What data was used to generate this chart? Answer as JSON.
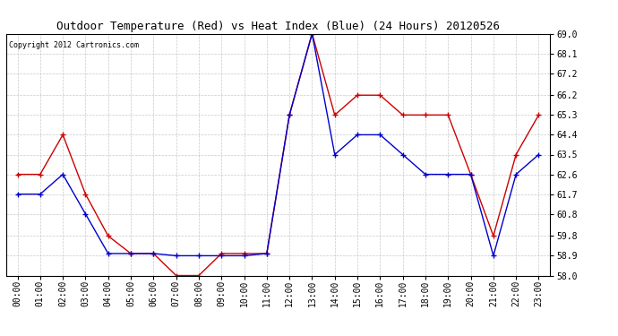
{
  "title": "Outdoor Temperature (Red) vs Heat Index (Blue) (24 Hours) 20120526",
  "copyright": "Copyright 2012 Cartronics.com",
  "x_labels": [
    "00:00",
    "01:00",
    "02:00",
    "03:00",
    "04:00",
    "05:00",
    "06:00",
    "07:00",
    "08:00",
    "09:00",
    "10:00",
    "11:00",
    "12:00",
    "13:00",
    "14:00",
    "15:00",
    "16:00",
    "17:00",
    "18:00",
    "19:00",
    "20:00",
    "21:00",
    "22:00",
    "23:00"
  ],
  "red_temp": [
    62.6,
    62.6,
    64.4,
    61.7,
    59.8,
    59.0,
    59.0,
    58.0,
    58.0,
    59.0,
    59.0,
    59.0,
    65.3,
    69.0,
    65.3,
    66.2,
    66.2,
    65.3,
    65.3,
    65.3,
    62.6,
    59.8,
    63.5,
    65.3
  ],
  "blue_heat": [
    61.7,
    61.7,
    62.6,
    60.8,
    59.0,
    59.0,
    59.0,
    58.9,
    58.9,
    58.9,
    58.9,
    59.0,
    65.3,
    69.0,
    63.5,
    64.4,
    64.4,
    63.5,
    62.6,
    62.6,
    62.6,
    58.9,
    62.6,
    63.5
  ],
  "ylim_min": 58.0,
  "ylim_max": 69.0,
  "yticks": [
    58.0,
    58.9,
    59.8,
    60.8,
    61.7,
    62.6,
    63.5,
    64.4,
    65.3,
    66.2,
    67.2,
    68.1,
    69.0
  ],
  "red_color": "#cc0000",
  "blue_color": "#0000cc",
  "background_color": "#ffffff",
  "grid_color": "#bbbbbb",
  "title_fontsize": 9,
  "tick_fontsize": 7,
  "copyright_fontsize": 6
}
